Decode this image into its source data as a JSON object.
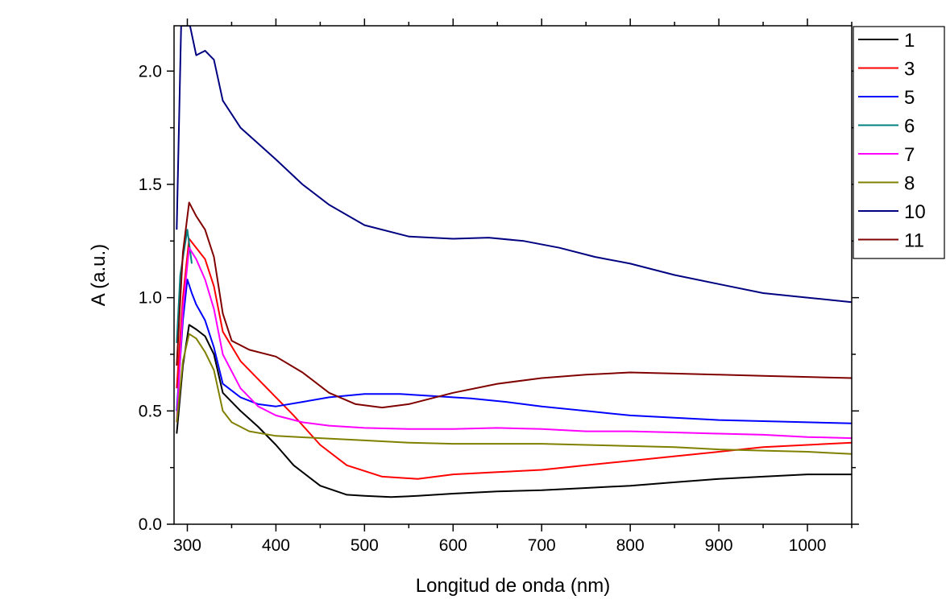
{
  "chart_data": {
    "type": "line",
    "xlabel": "Longitud de onda (nm)",
    "ylabel": "A (a.u.)",
    "xlim": [
      285,
      1050
    ],
    "ylim": [
      0.0,
      2.2
    ],
    "xticks": [
      300,
      400,
      500,
      600,
      700,
      800,
      900,
      1000
    ],
    "xtick_labels": [
      "300",
      "400",
      "500",
      "600",
      "700",
      "800",
      "900",
      "1000"
    ],
    "yticks": [
      0.0,
      0.5,
      1.0,
      1.5,
      2.0
    ],
    "ytick_labels": [
      "0.0",
      "0.5",
      "1.0",
      "1.5",
      "2.0"
    ],
    "grid": false,
    "legend_position": "top-right",
    "series": [
      {
        "name": "1",
        "color": "#000000",
        "x": [
          288,
          295,
          302,
          310,
          320,
          330,
          340,
          360,
          380,
          400,
          420,
          450,
          480,
          500,
          530,
          560,
          600,
          650,
          700,
          750,
          800,
          850,
          900,
          950,
          1000,
          1050
        ],
        "y": [
          0.4,
          0.7,
          0.88,
          0.86,
          0.83,
          0.75,
          0.58,
          0.5,
          0.43,
          0.35,
          0.26,
          0.17,
          0.13,
          0.125,
          0.12,
          0.125,
          0.135,
          0.145,
          0.15,
          0.16,
          0.17,
          0.185,
          0.2,
          0.21,
          0.22,
          0.22
        ]
      },
      {
        "name": "3",
        "color": "#ff0000",
        "x": [
          288,
          295,
          302,
          310,
          320,
          330,
          340,
          360,
          380,
          400,
          420,
          450,
          480,
          520,
          560,
          600,
          650,
          700,
          750,
          800,
          850,
          900,
          950,
          1000,
          1050
        ],
        "y": [
          0.6,
          1.0,
          1.26,
          1.22,
          1.17,
          1.05,
          0.85,
          0.72,
          0.64,
          0.56,
          0.48,
          0.35,
          0.26,
          0.21,
          0.2,
          0.22,
          0.23,
          0.24,
          0.26,
          0.28,
          0.3,
          0.32,
          0.34,
          0.35,
          0.36
        ]
      },
      {
        "name": "5",
        "color": "#0000ff",
        "x": [
          288,
          295,
          300,
          305,
          310,
          320,
          330,
          340,
          360,
          380,
          400,
          430,
          460,
          500,
          540,
          580,
          620,
          660,
          700,
          750,
          800,
          850,
          900,
          950,
          1000,
          1050
        ],
        "y": [
          0.5,
          0.9,
          1.08,
          1.02,
          0.97,
          0.9,
          0.78,
          0.62,
          0.56,
          0.53,
          0.52,
          0.54,
          0.56,
          0.575,
          0.575,
          0.565,
          0.555,
          0.54,
          0.52,
          0.5,
          0.48,
          0.47,
          0.46,
          0.455,
          0.45,
          0.445
        ]
      },
      {
        "name": "6",
        "color": "#008080",
        "x": [
          288,
          292,
          296,
          300,
          305
        ],
        "y": [
          0.8,
          1.1,
          1.2,
          1.3,
          1.15
        ]
      },
      {
        "name": "7",
        "color": "#ff00ff",
        "x": [
          288,
          295,
          302,
          310,
          320,
          330,
          340,
          360,
          380,
          400,
          430,
          460,
          500,
          550,
          600,
          650,
          700,
          750,
          800,
          850,
          900,
          950,
          1000,
          1050
        ],
        "y": [
          0.45,
          0.95,
          1.22,
          1.17,
          1.08,
          0.95,
          0.75,
          0.6,
          0.52,
          0.48,
          0.45,
          0.435,
          0.425,
          0.42,
          0.42,
          0.425,
          0.42,
          0.41,
          0.41,
          0.405,
          0.4,
          0.395,
          0.385,
          0.38
        ]
      },
      {
        "name": "8",
        "color": "#808000",
        "x": [
          288,
          295,
          302,
          310,
          320,
          330,
          340,
          350,
          370,
          400,
          450,
          500,
          550,
          600,
          650,
          700,
          750,
          800,
          850,
          900,
          950,
          1000,
          1050
        ],
        "y": [
          0.45,
          0.72,
          0.84,
          0.82,
          0.76,
          0.68,
          0.5,
          0.45,
          0.41,
          0.39,
          0.38,
          0.37,
          0.36,
          0.355,
          0.355,
          0.355,
          0.35,
          0.345,
          0.34,
          0.33,
          0.325,
          0.32,
          0.31
        ]
      },
      {
        "name": "10",
        "color": "#000080",
        "x": [
          288,
          293,
          298,
          303,
          310,
          320,
          330,
          340,
          360,
          380,
          400,
          430,
          460,
          500,
          550,
          600,
          640,
          680,
          720,
          760,
          800,
          850,
          900,
          950,
          1000,
          1050
        ],
        "y": [
          1.3,
          2.2,
          2.2,
          2.2,
          2.07,
          2.09,
          2.05,
          1.87,
          1.75,
          1.68,
          1.61,
          1.5,
          1.41,
          1.32,
          1.27,
          1.26,
          1.265,
          1.25,
          1.22,
          1.18,
          1.15,
          1.1,
          1.06,
          1.02,
          1.0,
          0.98
        ]
      },
      {
        "name": "11",
        "color": "#800000",
        "x": [
          288,
          295,
          302,
          310,
          320,
          330,
          340,
          350,
          370,
          400,
          430,
          460,
          490,
          520,
          550,
          600,
          650,
          700,
          750,
          800,
          850,
          900,
          950,
          1000,
          1050
        ],
        "y": [
          0.7,
          1.2,
          1.42,
          1.36,
          1.3,
          1.18,
          0.93,
          0.81,
          0.77,
          0.74,
          0.67,
          0.58,
          0.53,
          0.515,
          0.53,
          0.58,
          0.62,
          0.645,
          0.66,
          0.67,
          0.665,
          0.66,
          0.655,
          0.65,
          0.645
        ]
      }
    ]
  }
}
